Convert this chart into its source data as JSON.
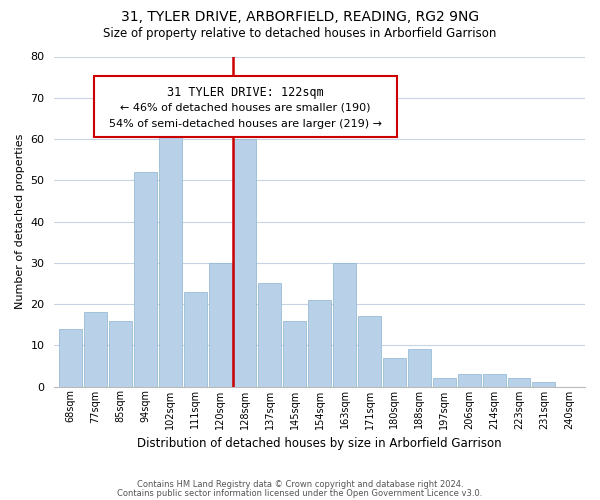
{
  "title": "31, TYLER DRIVE, ARBORFIELD, READING, RG2 9NG",
  "subtitle": "Size of property relative to detached houses in Arborfield Garrison",
  "xlabel": "Distribution of detached houses by size in Arborfield Garrison",
  "ylabel": "Number of detached properties",
  "bin_labels": [
    "68sqm",
    "77sqm",
    "85sqm",
    "94sqm",
    "102sqm",
    "111sqm",
    "120sqm",
    "128sqm",
    "137sqm",
    "145sqm",
    "154sqm",
    "163sqm",
    "171sqm",
    "180sqm",
    "188sqm",
    "197sqm",
    "206sqm",
    "214sqm",
    "223sqm",
    "231sqm",
    "240sqm"
  ],
  "bar_heights": [
    14,
    18,
    16,
    52,
    62,
    23,
    30,
    60,
    25,
    16,
    21,
    30,
    17,
    7,
    9,
    2,
    3,
    3,
    2,
    1,
    0
  ],
  "bar_color": "#b8d0e8",
  "bar_edge_color": "#8ab4d0",
  "highlight_bar_index": 6,
  "highlight_color": "#cc0000",
  "annotation_title": "31 TYLER DRIVE: 122sqm",
  "annotation_line1": "← 46% of detached houses are smaller (190)",
  "annotation_line2": "54% of semi-detached houses are larger (219) →",
  "ylim": [
    0,
    80
  ],
  "yticks": [
    0,
    10,
    20,
    30,
    40,
    50,
    60,
    70,
    80
  ],
  "footer1": "Contains HM Land Registry data © Crown copyright and database right 2024.",
  "footer2": "Contains public sector information licensed under the Open Government Licence v3.0.",
  "bg_color": "#ffffff",
  "grid_color": "#c8d4e4",
  "title_fontsize": 10,
  "subtitle_fontsize": 8.5
}
